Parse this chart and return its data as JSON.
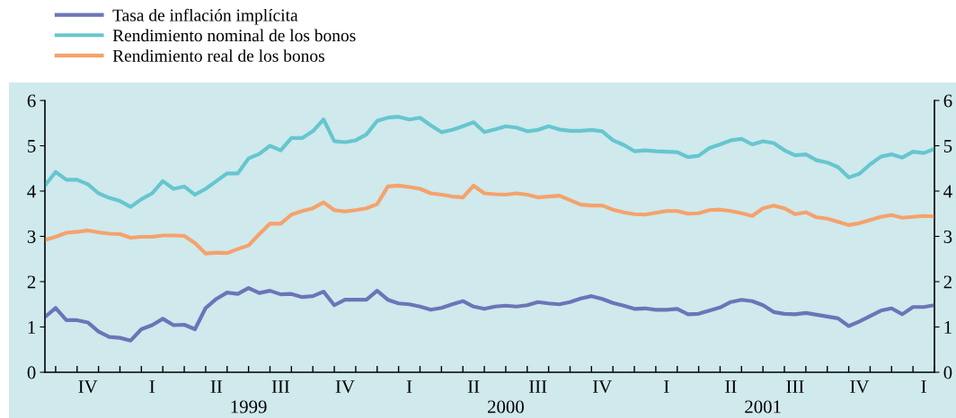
{
  "chart_data": {
    "type": "line",
    "categories": [
      null,
      null,
      null,
      null,
      "IV",
      null,
      null,
      null,
      null,
      null,
      "I",
      null,
      null,
      null,
      null,
      null,
      "II",
      null,
      null,
      "1999",
      null,
      null,
      "III",
      null,
      null,
      null,
      null,
      null,
      "IV",
      null,
      null,
      null,
      null,
      null,
      "I",
      null,
      null,
      null,
      null,
      null,
      "II",
      null,
      null,
      "2000",
      null,
      null,
      "III",
      null,
      null,
      null,
      null,
      null,
      "IV",
      null,
      null,
      null,
      null,
      null,
      "I",
      null,
      null,
      null,
      null,
      null,
      "II",
      null,
      null,
      "2001",
      null,
      null,
      "III",
      null,
      null,
      null,
      null,
      null,
      "IV",
      null,
      null,
      null,
      null,
      null,
      "I",
      null
    ],
    "series": [
      {
        "name": "Tasa de inflación implícita",
        "color": "#6b75b7",
        "values": [
          1.22,
          1.42,
          1.15,
          1.15,
          1.1,
          0.9,
          0.78,
          0.76,
          0.7,
          0.95,
          1.04,
          1.18,
          1.04,
          1.05,
          0.95,
          1.42,
          1.62,
          1.76,
          1.73,
          1.86,
          1.75,
          1.8,
          1.72,
          1.73,
          1.66,
          1.68,
          1.78,
          1.48,
          1.6,
          1.6,
          1.6,
          1.8,
          1.6,
          1.52,
          1.5,
          1.45,
          1.38,
          1.42,
          1.5,
          1.57,
          1.45,
          1.4,
          1.45,
          1.47,
          1.45,
          1.48,
          1.55,
          1.52,
          1.5,
          1.55,
          1.63,
          1.68,
          1.62,
          1.53,
          1.47,
          1.4,
          1.41,
          1.38,
          1.38,
          1.4,
          1.28,
          1.29,
          1.36,
          1.43,
          1.55,
          1.6,
          1.57,
          1.48,
          1.33,
          1.29,
          1.28,
          1.31,
          1.27,
          1.23,
          1.19,
          1.02,
          1.12,
          1.24,
          1.36,
          1.41,
          1.28,
          1.44,
          1.44,
          1.48
        ]
      },
      {
        "name": "Rendimiento nominal de los bonos",
        "color": "#66c6cf",
        "values": [
          4.12,
          4.42,
          4.25,
          4.25,
          4.15,
          3.95,
          3.85,
          3.78,
          3.65,
          3.82,
          3.95,
          4.22,
          4.05,
          4.1,
          3.92,
          4.05,
          4.22,
          4.39,
          4.39,
          4.72,
          4.82,
          5.0,
          4.9,
          5.17,
          5.17,
          5.32,
          5.58,
          5.1,
          5.08,
          5.12,
          5.25,
          5.55,
          5.62,
          5.64,
          5.58,
          5.62,
          5.45,
          5.3,
          5.35,
          5.43,
          5.52,
          5.3,
          5.36,
          5.43,
          5.4,
          5.32,
          5.35,
          5.43,
          5.36,
          5.33,
          5.33,
          5.35,
          5.32,
          5.12,
          5.02,
          4.88,
          4.9,
          4.88,
          4.87,
          4.86,
          4.75,
          4.78,
          4.95,
          5.03,
          5.12,
          5.15,
          5.03,
          5.1,
          5.06,
          4.9,
          4.79,
          4.81,
          4.68,
          4.63,
          4.53,
          4.3,
          4.38,
          4.59,
          4.76,
          4.81,
          4.74,
          4.87,
          4.84,
          4.93
        ]
      },
      {
        "name": "Rendimiento real de los bonos",
        "color": "#f5a26b",
        "values": [
          2.92,
          2.99,
          3.08,
          3.1,
          3.13,
          3.09,
          3.06,
          3.05,
          2.97,
          2.99,
          2.99,
          3.02,
          3.02,
          3.01,
          2.85,
          2.62,
          2.64,
          2.63,
          2.72,
          2.8,
          3.05,
          3.28,
          3.28,
          3.48,
          3.56,
          3.62,
          3.75,
          3.58,
          3.55,
          3.58,
          3.62,
          3.71,
          4.1,
          4.12,
          4.09,
          4.05,
          3.95,
          3.92,
          3.88,
          3.86,
          4.12,
          3.95,
          3.93,
          3.92,
          3.95,
          3.92,
          3.86,
          3.88,
          3.9,
          3.8,
          3.7,
          3.68,
          3.68,
          3.59,
          3.53,
          3.49,
          3.48,
          3.52,
          3.56,
          3.56,
          3.5,
          3.51,
          3.58,
          3.59,
          3.56,
          3.51,
          3.45,
          3.62,
          3.68,
          3.62,
          3.49,
          3.53,
          3.42,
          3.39,
          3.32,
          3.25,
          3.29,
          3.36,
          3.43,
          3.47,
          3.41,
          3.43,
          3.45,
          3.44
        ]
      }
    ],
    "ylim": [
      0,
      6
    ],
    "yticks": [
      0,
      1,
      2,
      3,
      4,
      5,
      6
    ],
    "y2lim": [
      0,
      6
    ],
    "y2ticks": [
      0,
      1,
      2,
      3,
      4,
      5,
      6
    ],
    "legend": "top left",
    "grid": false,
    "line_style": "solid",
    "marker": "none"
  }
}
